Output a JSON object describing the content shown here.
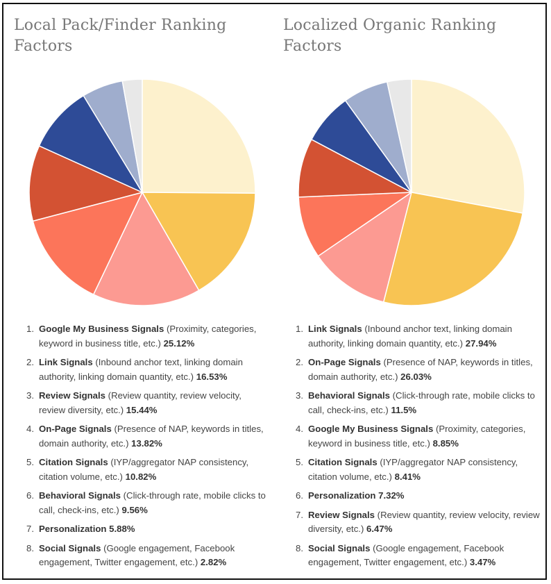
{
  "chart_data": [
    {
      "type": "pie",
      "title": "Local Pack/Finder Ranking Factors",
      "slices": [
        {
          "rank": "1.",
          "name": "Google My Business Signals",
          "detail": " (Proximity, categories, keyword in business title, etc.) ",
          "value": 25.12,
          "label": "25.12%",
          "color": "#fdf1cd"
        },
        {
          "rank": "2.",
          "name": "Link Signals",
          "detail": " (Inbound anchor text, linking domain authority, linking domain quantity, etc.) ",
          "value": 16.53,
          "label": "16.53%",
          "color": "#f8c453"
        },
        {
          "rank": "3.",
          "name": "Review Signals",
          "detail": " (Review quantity, review velocity, review diversity, etc.) ",
          "value": 15.44,
          "label": "15.44%",
          "color": "#fc9a92"
        },
        {
          "rank": "4.",
          "name": "On-Page Signals",
          "detail": " (Presence of NAP, keywords in titles, domain authority, etc.) ",
          "value": 13.82,
          "label": "13.82%",
          "color": "#fc755a"
        },
        {
          "rank": "5.",
          "name": "Citation Signals",
          "detail": " (IYP/aggregator NAP consistency, citation volume, etc.) ",
          "value": 10.82,
          "label": "10.82%",
          "color": "#d35233"
        },
        {
          "rank": "6.",
          "name": "Behavioral Signals",
          "detail": " (Click-through rate, mobile clicks to call, check-ins, etc.) ",
          "value": 9.56,
          "label": "9.56%",
          "color": "#2e4b97"
        },
        {
          "rank": "7.",
          "name": "Personalization",
          "detail": " ",
          "value": 5.88,
          "label": "5.88%",
          "color": "#9fadcd"
        },
        {
          "rank": "8.",
          "name": "Social Signals",
          "detail": " (Google engagement, Facebook engagement, Twitter engagement, etc.) ",
          "value": 2.82,
          "label": "2.82%",
          "color": "#e8e8e8"
        }
      ]
    },
    {
      "type": "pie",
      "title": "Localized Organic Ranking Factors",
      "slices": [
        {
          "rank": "1.",
          "name": "Link Signals",
          "detail": " (Inbound anchor text, linking domain authority, linking domain quantity, etc.) ",
          "value": 27.94,
          "label": "27.94%",
          "color": "#fdf1cd"
        },
        {
          "rank": "2.",
          "name": "On-Page Signals",
          "detail": " (Presence of NAP, keywords in titles, domain authority, etc.) ",
          "value": 26.03,
          "label": "26.03%",
          "color": "#f8c453"
        },
        {
          "rank": "3.",
          "name": "Behavioral Signals",
          "detail": " (Click-through rate, mobile clicks to call, check-ins, etc.) ",
          "value": 11.5,
          "label": "11.5%",
          "color": "#fc9a92"
        },
        {
          "rank": "4.",
          "name": "Google My Business Signals",
          "detail": " (Proximity, categories, keyword in business title, etc.) ",
          "value": 8.85,
          "label": "8.85%",
          "color": "#fc755a"
        },
        {
          "rank": "5.",
          "name": "Citation Signals",
          "detail": " (IYP/aggregator NAP consistency, citation volume, etc.) ",
          "value": 8.41,
          "label": "8.41%",
          "color": "#d35233"
        },
        {
          "rank": "6.",
          "name": "Personalization",
          "detail": " ",
          "value": 7.32,
          "label": "7.32%",
          "color": "#2e4b97"
        },
        {
          "rank": "7.",
          "name": "Review Signals",
          "detail": " (Review quantity, review velocity, review diversity, etc.) ",
          "value": 6.47,
          "label": "6.47%",
          "color": "#9fadcd"
        },
        {
          "rank": "8.",
          "name": "Social Signals",
          "detail": " (Google engagement, Facebook engagement, Twitter engagement, etc.) ",
          "value": 3.47,
          "label": "3.47%",
          "color": "#e8e8e8"
        }
      ]
    }
  ]
}
